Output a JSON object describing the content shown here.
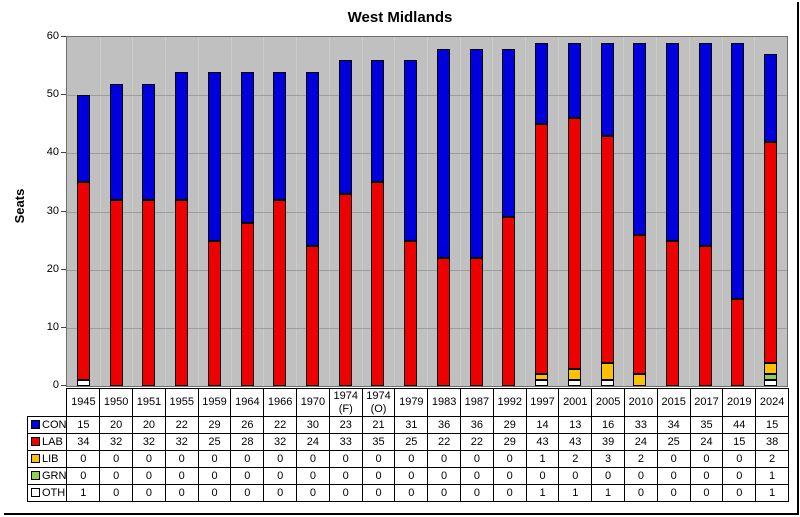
{
  "chart_data": {
    "type": "bar",
    "stacked": true,
    "title": "West Midlands",
    "ylabel": "Seats",
    "ylim": [
      0,
      60
    ],
    "yticks": [
      0,
      10,
      20,
      30,
      40,
      50,
      60
    ],
    "grid": true,
    "plot_background": "#c0c0c0",
    "gridline_color": "#9c9c9c",
    "legend_position": "table-left-column",
    "categories": [
      "1945",
      "1950",
      "1951",
      "1955",
      "1959",
      "1964",
      "1966",
      "1970",
      "1974 (F)",
      "1974 (O)",
      "1979",
      "1983",
      "1987",
      "1992",
      "1997",
      "2001",
      "2005",
      "2010",
      "2015",
      "2017",
      "2019",
      "2024"
    ],
    "series": [
      {
        "name": "CON",
        "color": "#0000dd",
        "values": [
          15,
          20,
          20,
          22,
          29,
          26,
          22,
          30,
          23,
          21,
          31,
          36,
          36,
          29,
          14,
          13,
          16,
          33,
          34,
          35,
          44,
          15
        ]
      },
      {
        "name": "LAB",
        "color": "#ee0000",
        "values": [
          34,
          32,
          32,
          32,
          25,
          28,
          32,
          24,
          33,
          35,
          25,
          22,
          22,
          29,
          43,
          43,
          39,
          24,
          25,
          24,
          15,
          38
        ]
      },
      {
        "name": "LIB",
        "color": "#ffc000",
        "values": [
          0,
          0,
          0,
          0,
          0,
          0,
          0,
          0,
          0,
          0,
          0,
          0,
          0,
          0,
          1,
          2,
          3,
          2,
          0,
          0,
          0,
          2
        ]
      },
      {
        "name": "GRN",
        "color": "#92d050",
        "values": [
          0,
          0,
          0,
          0,
          0,
          0,
          0,
          0,
          0,
          0,
          0,
          0,
          0,
          0,
          0,
          0,
          0,
          0,
          0,
          0,
          0,
          1
        ]
      },
      {
        "name": "OTH",
        "color": "#ffffff",
        "values": [
          1,
          0,
          0,
          0,
          0,
          0,
          0,
          0,
          0,
          0,
          0,
          0,
          0,
          0,
          1,
          1,
          1,
          0,
          0,
          0,
          0,
          1
        ]
      }
    ],
    "stack_order_bottom_to_top": [
      "OTH",
      "GRN",
      "LIB",
      "LAB",
      "CON"
    ]
  }
}
